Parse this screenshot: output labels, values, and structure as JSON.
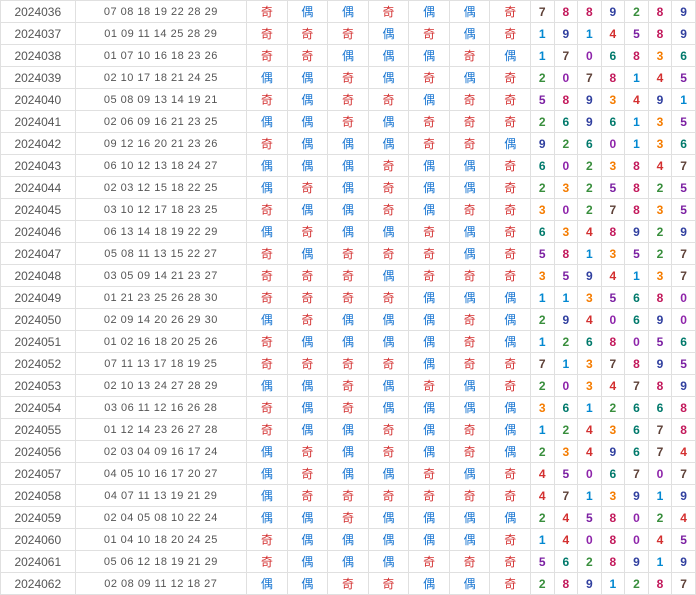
{
  "labels": {
    "odd": "奇",
    "even": "偶"
  },
  "colors": {
    "odd": "#d32f2f",
    "even": "#1976d2",
    "border": "#e0e0e0",
    "text": "#555",
    "bg": "#ffffff"
  },
  "digit_colors": [
    "#8e24aa",
    "#0288d1",
    "#388e3c",
    "#f57c00",
    "#d32f2f",
    "#7b1fa2",
    "#00796b",
    "#5d4037",
    "#c2185b",
    "#303f9f"
  ],
  "rows": [
    {
      "id": "2024036",
      "n": "07 08 18 19 22 28 29",
      "oe": [
        1,
        0,
        0,
        1,
        0,
        0,
        1
      ],
      "d": [
        7,
        8,
        8,
        9,
        2,
        8,
        9
      ]
    },
    {
      "id": "2024037",
      "n": "01 09 11 14 25 28 29",
      "oe": [
        1,
        1,
        1,
        0,
        1,
        0,
        1
      ],
      "d": [
        1,
        9,
        1,
        4,
        5,
        8,
        9
      ]
    },
    {
      "id": "2024038",
      "n": "01 07 10 16 18 23 26",
      "oe": [
        1,
        1,
        0,
        0,
        0,
        1,
        0
      ],
      "d": [
        1,
        7,
        0,
        6,
        8,
        3,
        6
      ]
    },
    {
      "id": "2024039",
      "n": "02 10 17 18 21 24 25",
      "oe": [
        0,
        0,
        1,
        0,
        1,
        0,
        1
      ],
      "d": [
        2,
        0,
        7,
        8,
        1,
        4,
        5
      ]
    },
    {
      "id": "2024040",
      "n": "05 08 09 13 14 19 21",
      "oe": [
        1,
        0,
        1,
        1,
        0,
        1,
        1
      ],
      "d": [
        5,
        8,
        9,
        3,
        4,
        9,
        1
      ]
    },
    {
      "id": "2024041",
      "n": "02 06 09 16 21 23 25",
      "oe": [
        0,
        0,
        1,
        0,
        1,
        1,
        1
      ],
      "d": [
        2,
        6,
        9,
        6,
        1,
        3,
        5
      ]
    },
    {
      "id": "2024042",
      "n": "09 12 16 20 21 23 26",
      "oe": [
        1,
        0,
        0,
        0,
        1,
        1,
        0
      ],
      "d": [
        9,
        2,
        6,
        0,
        1,
        3,
        6
      ]
    },
    {
      "id": "2024043",
      "n": "06 10 12 13 18 24 27",
      "oe": [
        0,
        0,
        0,
        1,
        0,
        0,
        1
      ],
      "d": [
        6,
        0,
        2,
        3,
        8,
        4,
        7
      ]
    },
    {
      "id": "2024044",
      "n": "02 03 12 15 18 22 25",
      "oe": [
        0,
        1,
        0,
        1,
        0,
        0,
        1
      ],
      "d": [
        2,
        3,
        2,
        5,
        8,
        2,
        5
      ]
    },
    {
      "id": "2024045",
      "n": "03 10 12 17 18 23 25",
      "oe": [
        1,
        0,
        0,
        1,
        0,
        1,
        1
      ],
      "d": [
        3,
        0,
        2,
        7,
        8,
        3,
        5
      ]
    },
    {
      "id": "2024046",
      "n": "06 13 14 18 19 22 29",
      "oe": [
        0,
        1,
        0,
        0,
        1,
        0,
        1
      ],
      "d": [
        6,
        3,
        4,
        8,
        9,
        2,
        9
      ]
    },
    {
      "id": "2024047",
      "n": "05 08 11 13 15 22 27",
      "oe": [
        1,
        0,
        1,
        1,
        1,
        0,
        1
      ],
      "d": [
        5,
        8,
        1,
        3,
        5,
        2,
        7
      ]
    },
    {
      "id": "2024048",
      "n": "03 05 09 14 21 23 27",
      "oe": [
        1,
        1,
        1,
        0,
        1,
        1,
        1
      ],
      "d": [
        3,
        5,
        9,
        4,
        1,
        3,
        7
      ]
    },
    {
      "id": "2024049",
      "n": "01 21 23 25 26 28 30",
      "oe": [
        1,
        1,
        1,
        1,
        0,
        0,
        0
      ],
      "d": [
        1,
        1,
        3,
        5,
        6,
        8,
        0
      ]
    },
    {
      "id": "2024050",
      "n": "02 09 14 20 26 29 30",
      "oe": [
        0,
        1,
        0,
        0,
        0,
        1,
        0
      ],
      "d": [
        2,
        9,
        4,
        0,
        6,
        9,
        0
      ]
    },
    {
      "id": "2024051",
      "n": "01 02 16 18 20 25 26",
      "oe": [
        1,
        0,
        0,
        0,
        0,
        1,
        0
      ],
      "d": [
        1,
        2,
        6,
        8,
        0,
        5,
        6
      ]
    },
    {
      "id": "2024052",
      "n": "07 11 13 17 18 19 25",
      "oe": [
        1,
        1,
        1,
        1,
        0,
        1,
        1
      ],
      "d": [
        7,
        1,
        3,
        7,
        8,
        9,
        5
      ]
    },
    {
      "id": "2024053",
      "n": "02 10 13 24 27 28 29",
      "oe": [
        0,
        0,
        1,
        0,
        1,
        0,
        1
      ],
      "d": [
        2,
        0,
        3,
        4,
        7,
        8,
        9
      ]
    },
    {
      "id": "2024054",
      "n": "03 06 11 12 16 26 28",
      "oe": [
        1,
        0,
        1,
        0,
        0,
        0,
        0
      ],
      "d": [
        3,
        6,
        1,
        2,
        6,
        6,
        8
      ]
    },
    {
      "id": "2024055",
      "n": "01 12 14 23 26 27 28",
      "oe": [
        1,
        0,
        0,
        1,
        0,
        1,
        0
      ],
      "d": [
        1,
        2,
        4,
        3,
        6,
        7,
        8
      ]
    },
    {
      "id": "2024056",
      "n": "02 03 04 09 16 17 24",
      "oe": [
        0,
        1,
        0,
        1,
        0,
        1,
        0
      ],
      "d": [
        2,
        3,
        4,
        9,
        6,
        7,
        4
      ]
    },
    {
      "id": "2024057",
      "n": "04 05 10 16 17 20 27",
      "oe": [
        0,
        1,
        0,
        0,
        1,
        0,
        1
      ],
      "d": [
        4,
        5,
        0,
        6,
        7,
        0,
        7
      ]
    },
    {
      "id": "2024058",
      "n": "04 07 11 13 19 21 29",
      "oe": [
        0,
        1,
        1,
        1,
        1,
        1,
        1
      ],
      "d": [
        4,
        7,
        1,
        3,
        9,
        1,
        9
      ]
    },
    {
      "id": "2024059",
      "n": "02 04 05 08 10 22 24",
      "oe": [
        0,
        0,
        1,
        0,
        0,
        0,
        0
      ],
      "d": [
        2,
        4,
        5,
        8,
        0,
        2,
        4
      ]
    },
    {
      "id": "2024060",
      "n": "01 04 10 18 20 24 25",
      "oe": [
        1,
        0,
        0,
        0,
        0,
        0,
        1
      ],
      "d": [
        1,
        4,
        0,
        8,
        0,
        4,
        5
      ]
    },
    {
      "id": "2024061",
      "n": "05 06 12 18 19 21 29",
      "oe": [
        1,
        0,
        0,
        0,
        1,
        1,
        1
      ],
      "d": [
        5,
        6,
        2,
        8,
        9,
        1,
        9
      ]
    },
    {
      "id": "2024062",
      "n": "02 08 09 11 12 18 27",
      "oe": [
        0,
        0,
        1,
        1,
        0,
        0,
        1
      ],
      "d": [
        2,
        8,
        9,
        1,
        2,
        8,
        7
      ]
    }
  ]
}
